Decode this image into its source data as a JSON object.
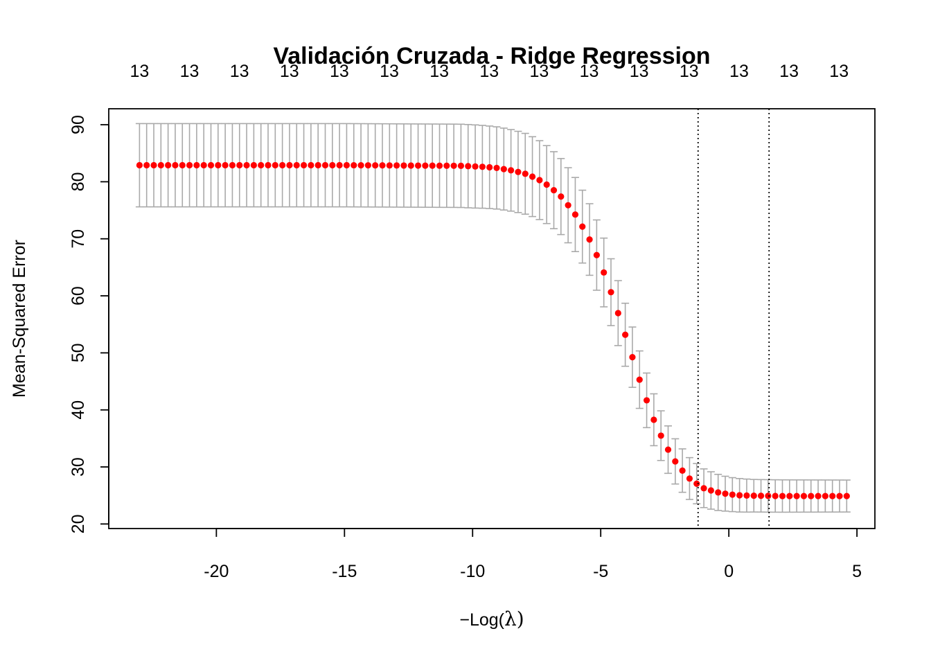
{
  "chart_data": {
    "type": "scatter",
    "title": "Validación Cruzada - Ridge Regression",
    "xlabel": {
      "prefix": "−",
      "text": "Log(",
      "symbol": "λ",
      "suffix": ")"
    },
    "ylabel": "Mean-Squared Error",
    "xlim": [
      -24.2,
      5.7
    ],
    "ylim": [
      19.2,
      92.8
    ],
    "x_ticks": [
      -20,
      -15,
      -10,
      -5,
      0,
      5
    ],
    "x_tick_labels": [
      "-20",
      "-15",
      "-10",
      "-5",
      "0",
      "5"
    ],
    "y_ticks": [
      20,
      30,
      40,
      50,
      60,
      70,
      80,
      90
    ],
    "y_tick_labels": [
      "20",
      "30",
      "40",
      "50",
      "60",
      "70",
      "80",
      "90"
    ],
    "top_axis": {
      "ticks": [
        -23.0,
        -21.05,
        -19.1,
        -17.15,
        -15.2,
        -13.25,
        -11.3,
        -9.35,
        -7.4,
        -5.45,
        -3.5,
        -1.55,
        0.4,
        2.35,
        4.3
      ],
      "labels": [
        "13",
        "13",
        "13",
        "13",
        "13",
        "13",
        "13",
        "13",
        "13",
        "13",
        "13",
        "13",
        "13",
        "13",
        "13"
      ]
    },
    "vlines": [
      -1.2,
      1.57
    ],
    "x_range": [
      -23.0,
      4.6
    ],
    "n_points": 100,
    "mse_anchors": {
      "x": [
        -23.0,
        -15.0,
        -10.5,
        -9.5,
        -9.0,
        -8.5,
        -8.0,
        -7.5,
        -7.0,
        -6.5,
        -6.0,
        -5.5,
        -5.0,
        -4.5,
        -4.0,
        -3.5,
        -3.0,
        -2.5,
        -2.0,
        -1.5,
        -1.0,
        -0.5,
        0.0,
        0.5,
        1.0,
        2.0,
        4.6
      ],
      "mse": [
        82.9,
        82.9,
        82.8,
        82.6,
        82.4,
        82.0,
        81.5,
        80.6,
        79.2,
        77.2,
        74.3,
        70.5,
        65.6,
        59.4,
        52.6,
        45.5,
        39.0,
        34.0,
        30.3,
        27.8,
        26.3,
        25.6,
        25.2,
        25.0,
        24.95,
        24.9,
        24.9
      ]
    },
    "se_anchors": {
      "x": [
        -23.0,
        -10.0,
        -8.0,
        -6.0,
        -5.0,
        -4.0,
        -3.0,
        -2.0,
        -1.0,
        0.0,
        1.0,
        4.6
      ],
      "se": [
        7.3,
        7.3,
        7.1,
        6.5,
        6.1,
        5.5,
        4.6,
        3.9,
        3.4,
        3.0,
        2.85,
        2.8
      ]
    },
    "colors": {
      "points": "#ff0000",
      "errorbars": "#a9a9a9",
      "vlines": "#000000",
      "box": "#000000"
    }
  }
}
